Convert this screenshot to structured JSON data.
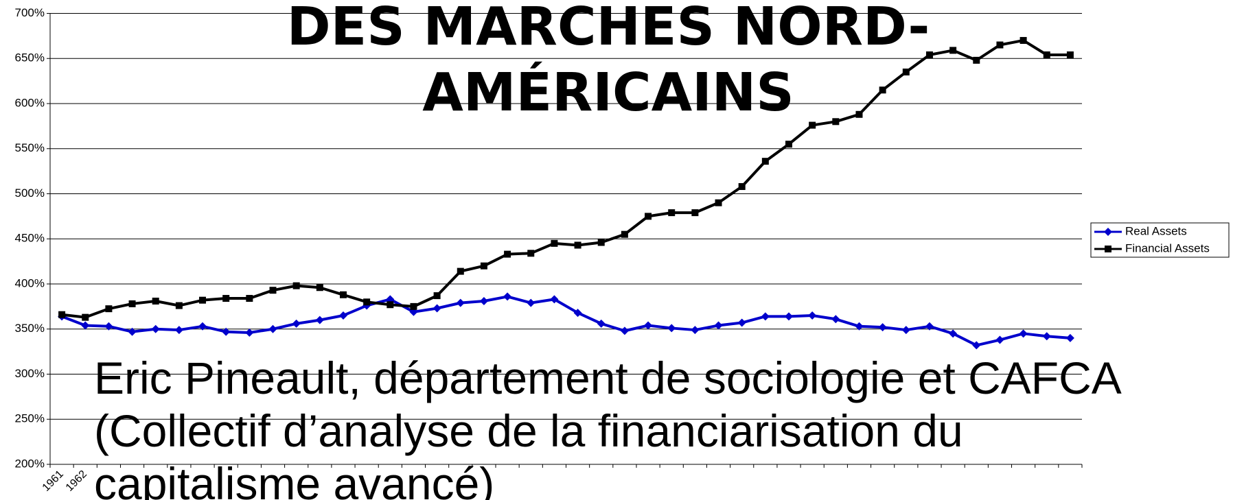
{
  "chart_data": {
    "type": "line",
    "title": "DES MARCHES NORD-AMÉRICAINS",
    "subtitle": "Eric Pineault, département de sociologie et CAFCA (Collectif d’analyse de la financiarisation du capitalisme avancé)",
    "categories": [
      "1961",
      "1962",
      null,
      null,
      null,
      null,
      null,
      null,
      null,
      null,
      null,
      null,
      null,
      null,
      null,
      null,
      null,
      null,
      null,
      null,
      null,
      null,
      null,
      null,
      null,
      null,
      null,
      null,
      null,
      null,
      null,
      null,
      null,
      null,
      null,
      null,
      null,
      null,
      null,
      null,
      null,
      null,
      null,
      null
    ],
    "series": [
      {
        "name": "Real Assets",
        "color": "#0000cc",
        "marker": "diamond",
        "values": [
          364,
          354,
          353,
          347,
          350,
          349,
          353,
          347,
          346,
          350,
          356,
          360,
          365,
          376,
          383,
          369,
          373,
          379,
          381,
          386,
          379,
          383,
          368,
          356,
          348,
          354,
          351,
          349,
          354,
          357,
          364,
          364,
          365,
          361,
          353,
          352,
          349,
          353,
          345,
          332,
          338,
          345,
          342,
          340
        ]
      },
      {
        "name": "Financial Assets",
        "color": "#000000",
        "marker": "square",
        "values": [
          366,
          363,
          372.5,
          378,
          381,
          376,
          382,
          384,
          384,
          393,
          398,
          396,
          388,
          380,
          377,
          375,
          387,
          414,
          420,
          433,
          434,
          445,
          443,
          446,
          455,
          475,
          479,
          479,
          490,
          508,
          536,
          555,
          576,
          580,
          588,
          615,
          635,
          654,
          659,
          648,
          665,
          670,
          654,
          654
        ]
      }
    ],
    "ylim": [
      200,
      700
    ],
    "yticks": [
      {
        "value": 200,
        "label": "200%"
      },
      {
        "value": 250,
        "label": "250%"
      },
      {
        "value": 300,
        "label": "300%"
      },
      {
        "value": 350,
        "label": "350%"
      },
      {
        "value": 400,
        "label": "400%"
      },
      {
        "value": 450,
        "label": "450%"
      },
      {
        "value": 500,
        "label": "500%"
      },
      {
        "value": 550,
        "label": "550%"
      },
      {
        "value": 600,
        "label": "600%"
      },
      {
        "value": 650,
        "label": "650%"
      },
      {
        "value": 700,
        "label": "700%"
      }
    ],
    "grid": true,
    "legend": "right"
  }
}
